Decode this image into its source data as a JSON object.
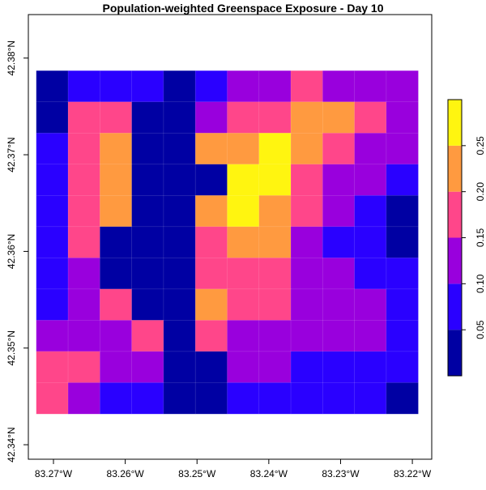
{
  "chart_data": {
    "type": "heatmap",
    "title": "Population-weighted Greenspace Exposure - Day 10",
    "xlabel": "",
    "ylabel": "",
    "x_ticks": [
      {
        "value": -83.27,
        "label": "83.27°W"
      },
      {
        "value": -83.26,
        "label": "83.26°W"
      },
      {
        "value": -83.25,
        "label": "83.25°W"
      },
      {
        "value": -83.24,
        "label": "83.24°W"
      },
      {
        "value": -83.23,
        "label": "83.23°W"
      },
      {
        "value": -83.22,
        "label": "83.22°W"
      }
    ],
    "y_ticks": [
      {
        "value": 42.38,
        "label": "42.38°N"
      },
      {
        "value": 42.37,
        "label": "42.37°N"
      },
      {
        "value": 42.36,
        "label": "42.36°N"
      },
      {
        "value": 42.35,
        "label": "42.35°N"
      },
      {
        "value": 42.34,
        "label": "42.34°N"
      }
    ],
    "xlim": [
      -83.2735,
      -83.2173
    ],
    "ylim": [
      42.3385,
      42.3845
    ],
    "grid_extent": {
      "lon": [
        -83.2724,
        -83.2192
      ],
      "lat": [
        42.3432,
        42.3787
      ]
    },
    "legend": {
      "placement": "right",
      "breaks": [
        0,
        0.05,
        0.1,
        0.15,
        0.2,
        0.25,
        0.3
      ],
      "tick_labels": [
        "0.05",
        "0.10",
        "0.15",
        "0.20",
        "0.25"
      ],
      "tick_values": [
        0.05,
        0.1,
        0.15,
        0.2,
        0.25
      ],
      "colors": [
        "#0000A3",
        "#2A00FF",
        "#9900DD",
        "#FF468A",
        "#FF9A40",
        "#FFF510"
      ]
    },
    "grid_lines": false,
    "rows_top_to_bottom": [
      [
        0.025,
        0.075,
        0.075,
        0.075,
        0.025,
        0.075,
        0.125,
        0.125,
        0.175,
        0.125,
        0.125,
        0.125
      ],
      [
        0.025,
        0.175,
        0.175,
        0.025,
        0.025,
        0.125,
        0.175,
        0.175,
        0.225,
        0.225,
        0.175,
        0.125
      ],
      [
        0.075,
        0.175,
        0.225,
        0.025,
        0.025,
        0.225,
        0.225,
        0.275,
        0.225,
        0.175,
        0.125,
        0.125
      ],
      [
        0.075,
        0.175,
        0.225,
        0.025,
        0.025,
        0.025,
        0.275,
        0.275,
        0.175,
        0.125,
        0.125,
        0.075
      ],
      [
        0.075,
        0.175,
        0.225,
        0.025,
        0.025,
        0.225,
        0.275,
        0.225,
        0.175,
        0.125,
        0.075,
        0.025
      ],
      [
        0.075,
        0.175,
        0.025,
        0.025,
        0.025,
        0.175,
        0.225,
        0.225,
        0.125,
        0.075,
        0.075,
        0.025
      ],
      [
        0.075,
        0.125,
        0.025,
        0.025,
        0.025,
        0.175,
        0.175,
        0.175,
        0.125,
        0.125,
        0.075,
        0.075
      ],
      [
        0.075,
        0.125,
        0.175,
        0.025,
        0.025,
        0.225,
        0.175,
        0.175,
        0.125,
        0.125,
        0.125,
        0.075
      ],
      [
        0.125,
        0.125,
        0.125,
        0.175,
        0.025,
        0.175,
        0.125,
        0.125,
        0.125,
        0.125,
        0.125,
        0.075
      ],
      [
        0.175,
        0.175,
        0.125,
        0.125,
        0.025,
        0.025,
        0.125,
        0.125,
        0.075,
        0.075,
        0.075,
        0.075
      ],
      [
        0.175,
        0.125,
        0.075,
        0.075,
        0.025,
        0.025,
        0.075,
        0.075,
        0.075,
        0.075,
        0.075,
        0.025
      ]
    ]
  }
}
